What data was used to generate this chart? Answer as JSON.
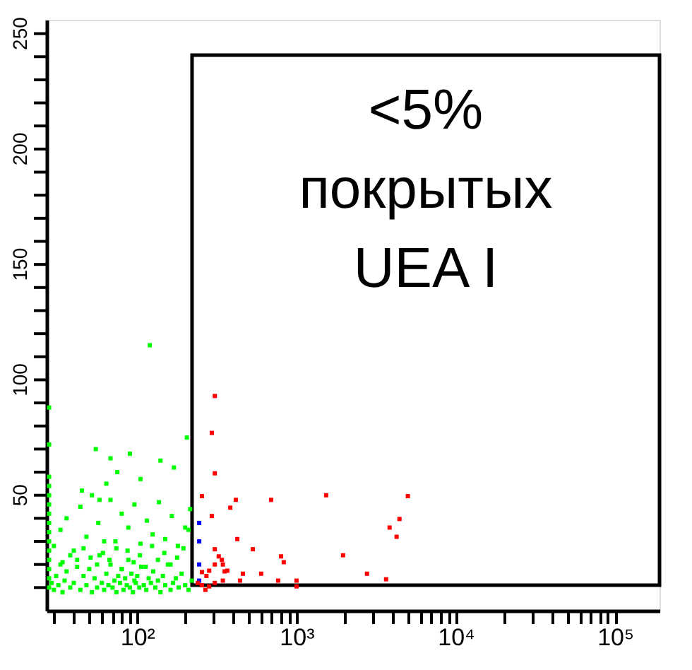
{
  "chart_data": {
    "type": "scatter",
    "log": "x",
    "grid": false,
    "marker": "square",
    "xlim": [
      27,
      190000
    ],
    "ylim": [
      0,
      256
    ],
    "xticks": [
      {
        "value": 30,
        "label": null
      },
      {
        "value": 40,
        "label": null
      },
      {
        "value": 50,
        "label": null
      },
      {
        "value": 60,
        "label": null
      },
      {
        "value": 70,
        "label": null
      },
      {
        "value": 80,
        "label": null
      },
      {
        "value": 90,
        "label": null
      },
      {
        "value": 100,
        "label": "10²"
      },
      {
        "value": 200,
        "label": null
      },
      {
        "value": 300,
        "label": null
      },
      {
        "value": 400,
        "label": null
      },
      {
        "value": 500,
        "label": null
      },
      {
        "value": 600,
        "label": null
      },
      {
        "value": 700,
        "label": null
      },
      {
        "value": 800,
        "label": null
      },
      {
        "value": 900,
        "label": null
      },
      {
        "value": 1000,
        "label": "10³"
      },
      {
        "value": 2000,
        "label": null
      },
      {
        "value": 3000,
        "label": null
      },
      {
        "value": 4000,
        "label": null
      },
      {
        "value": 5000,
        "label": null
      },
      {
        "value": 6000,
        "label": null
      },
      {
        "value": 7000,
        "label": null
      },
      {
        "value": 8000,
        "label": null
      },
      {
        "value": 9000,
        "label": null
      },
      {
        "value": 10000,
        "label": "10⁴"
      },
      {
        "value": 20000,
        "label": null
      },
      {
        "value": 30000,
        "label": null
      },
      {
        "value": 40000,
        "label": null
      },
      {
        "value": 50000,
        "label": null
      },
      {
        "value": 60000,
        "label": null
      },
      {
        "value": 70000,
        "label": null
      },
      {
        "value": 80000,
        "label": null
      },
      {
        "value": 90000,
        "label": null
      },
      {
        "value": 100000,
        "label": "10⁵"
      }
    ],
    "yticks": [
      {
        "value": 10,
        "label": null
      },
      {
        "value": 20,
        "label": null
      },
      {
        "value": 30,
        "label": null
      },
      {
        "value": 40,
        "label": null
      },
      50,
      {
        "value": 60,
        "label": null
      },
      {
        "value": 70,
        "label": null
      },
      {
        "value": 80,
        "label": null
      },
      {
        "value": 90,
        "label": null
      },
      100,
      {
        "value": 110,
        "label": null
      },
      {
        "value": 120,
        "label": null
      },
      {
        "value": 130,
        "label": null
      },
      {
        "value": 140,
        "label": null
      },
      150,
      {
        "value": 160,
        "label": null
      },
      {
        "value": 170,
        "label": null
      },
      {
        "value": 180,
        "label": null
      },
      {
        "value": 190,
        "label": null
      },
      200,
      {
        "value": 210,
        "label": null
      },
      {
        "value": 220,
        "label": null
      },
      {
        "value": 230,
        "label": null
      },
      {
        "value": 240,
        "label": null
      },
      250
    ],
    "bands": [
      {
        "axis": "x",
        "from": 221,
        "to": 190000,
        "label": "<5%\nпокрытых\nUEA I",
        "color": "#000000"
      }
    ],
    "series": [
      {
        "color": "#00ff00",
        "x": [
          28,
          28,
          28,
          28,
          28,
          28,
          28,
          28,
          28,
          28,
          28,
          28,
          28,
          28,
          28,
          29,
          30,
          31,
          32,
          33,
          34,
          35,
          36,
          38,
          40,
          42,
          44,
          46,
          48,
          50,
          52,
          54,
          56,
          58,
          60,
          62,
          64,
          66,
          68,
          70,
          72,
          74,
          76,
          78,
          80,
          82,
          84,
          86,
          88,
          90,
          92,
          94,
          96,
          98,
          100,
          103,
          106,
          110,
          114,
          118,
          122,
          126,
          130,
          135,
          140,
          145,
          150,
          156,
          162,
          168,
          175,
          182,
          190,
          200,
          210,
          220,
          30,
          33,
          36,
          40,
          44,
          48,
          52,
          57,
          62,
          68,
          74,
          80,
          88,
          96,
          105,
          115,
          125,
          137,
          150,
          165,
          180,
          200,
          215,
          34,
          38,
          42,
          46,
          51,
          56,
          61,
          67,
          73,
          80,
          87,
          95,
          104,
          113,
          124,
          135,
          148,
          162,
          178,
          195,
          210,
          45,
          58,
          64,
          75,
          105,
          140,
          170,
          205,
          55,
          68,
          90,
          120
        ],
        "values": [
          10,
          14,
          18,
          22,
          26,
          30,
          34,
          38,
          42,
          46,
          50,
          54,
          58,
          88,
          72,
          12,
          9,
          15,
          11,
          20,
          8,
          13,
          17,
          10,
          12,
          22,
          9,
          15,
          11,
          18,
          8,
          14,
          10,
          24,
          12,
          9,
          16,
          11,
          20,
          10,
          13,
          8,
          15,
          12,
          18,
          9,
          14,
          11,
          22,
          10,
          16,
          8,
          13,
          12,
          15,
          10,
          19,
          11,
          9,
          14,
          12,
          17,
          10,
          13,
          8,
          15,
          11,
          20,
          9,
          12,
          14,
          10,
          16,
          11,
          9,
          13,
          28,
          35,
          40,
          26,
          45,
          32,
          50,
          38,
          30,
          48,
          27,
          42,
          36,
          46,
          29,
          39,
          33,
          47,
          31,
          41,
          28,
          36,
          44,
          21,
          24,
          19,
          27,
          23,
          20,
          25,
          22,
          30,
          18,
          26,
          21,
          24,
          19,
          28,
          22,
          25,
          20,
          23,
          27,
          35,
          52,
          48,
          55,
          60,
          57,
          65,
          62,
          75,
          70,
          66,
          68,
          115
        ]
      },
      {
        "color": "#0000ff",
        "x": [
          245,
          245,
          245,
          245
        ],
        "values": [
          38,
          30,
          20,
          13
        ]
      },
      {
        "color": "#ff0000",
        "x": [
          307,
          294,
          307,
          255,
          294,
          416,
          384,
          693,
          1535,
          5000,
          4430,
          3840,
          4250,
          425,
          532,
          1960,
          307,
          800,
          832,
          325,
          345,
          340,
          354,
          368,
          307,
          283,
          272,
          255,
          345,
          442,
          461,
          600,
          767,
          1000,
          1000,
          2770,
          3650,
          268,
          283,
          307,
          255,
          240
        ],
        "values": [
          93,
          77,
          59.5,
          49.6,
          41,
          48,
          44.6,
          48,
          50,
          49.6,
          39.7,
          36,
          32,
          31,
          26.6,
          24,
          26.6,
          23.5,
          21,
          23.5,
          20,
          22,
          17,
          17.3,
          20,
          17.3,
          15,
          16.7,
          13,
          13,
          16,
          16,
          13,
          13,
          10.5,
          16,
          13.6,
          9,
          10.5,
          12,
          11,
          12
        ]
      }
    ]
  }
}
